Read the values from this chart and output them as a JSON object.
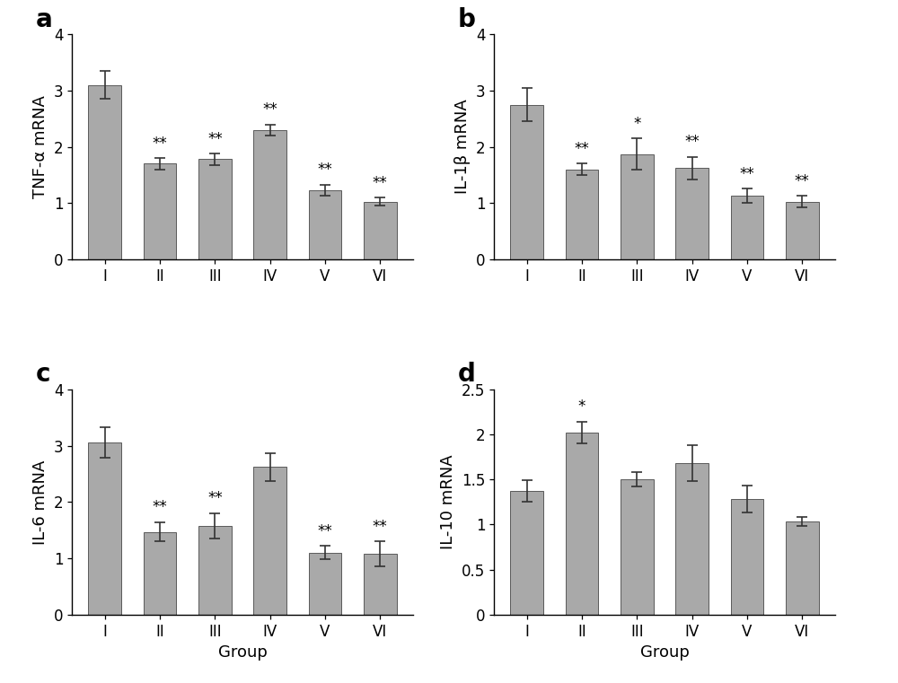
{
  "panels": [
    {
      "label": "a",
      "ylabel": "TNF-α mRNA",
      "categories": [
        "I",
        "II",
        "III",
        "IV",
        "V",
        "VI"
      ],
      "values": [
        3.1,
        1.7,
        1.78,
        2.3,
        1.23,
        1.03
      ],
      "errors": [
        0.25,
        0.1,
        0.1,
        0.1,
        0.1,
        0.07
      ],
      "significance": [
        "",
        "**",
        "**",
        "**",
        "**",
        "**"
      ],
      "ylim": [
        0,
        4
      ],
      "yticks": [
        0,
        1,
        2,
        3,
        4
      ],
      "has_xlabel": false
    },
    {
      "label": "b",
      "ylabel": "IL-1β mRNA",
      "categories": [
        "I",
        "II",
        "III",
        "IV",
        "V",
        "VI"
      ],
      "values": [
        2.75,
        1.6,
        1.87,
        1.62,
        1.13,
        1.03
      ],
      "errors": [
        0.3,
        0.1,
        0.28,
        0.2,
        0.13,
        0.1
      ],
      "significance": [
        "",
        "**",
        "*",
        "**",
        "**",
        "**"
      ],
      "ylim": [
        0,
        4
      ],
      "yticks": [
        0,
        1,
        2,
        3,
        4
      ],
      "has_xlabel": false
    },
    {
      "label": "c",
      "ylabel": "IL-6 mRNA",
      "categories": [
        "I",
        "II",
        "III",
        "IV",
        "V",
        "VI"
      ],
      "values": [
        3.05,
        1.47,
        1.58,
        2.62,
        1.1,
        1.08
      ],
      "errors": [
        0.27,
        0.17,
        0.22,
        0.25,
        0.12,
        0.22
      ],
      "significance": [
        "",
        "**",
        "**",
        "",
        "**",
        "**"
      ],
      "ylim": [
        0,
        4
      ],
      "yticks": [
        0,
        1,
        2,
        3,
        4
      ],
      "has_xlabel": true
    },
    {
      "label": "d",
      "ylabel": "IL-10 mRNA",
      "categories": [
        "I",
        "II",
        "III",
        "IV",
        "V",
        "VI"
      ],
      "values": [
        1.37,
        2.02,
        1.5,
        1.68,
        1.28,
        1.03
      ],
      "errors": [
        0.12,
        0.12,
        0.08,
        0.2,
        0.15,
        0.05
      ],
      "significance": [
        "",
        "*",
        "",
        "",
        "",
        ""
      ],
      "ylim": [
        0.0,
        2.5
      ],
      "yticks": [
        0.0,
        0.5,
        1.0,
        1.5,
        2.0,
        2.5
      ],
      "has_xlabel": true
    }
  ],
  "bar_color": "#a9a9a9",
  "bar_edge_color": "#5a5a5a",
  "error_color": "#333333",
  "xlabel": "Group",
  "background_color": "#ffffff",
  "bar_width": 0.6,
  "label_fontsize": 20,
  "tick_fontsize": 12,
  "ylabel_fontsize": 13,
  "sig_fontsize": 12,
  "xlabel_fontsize": 13,
  "capsize": 4
}
